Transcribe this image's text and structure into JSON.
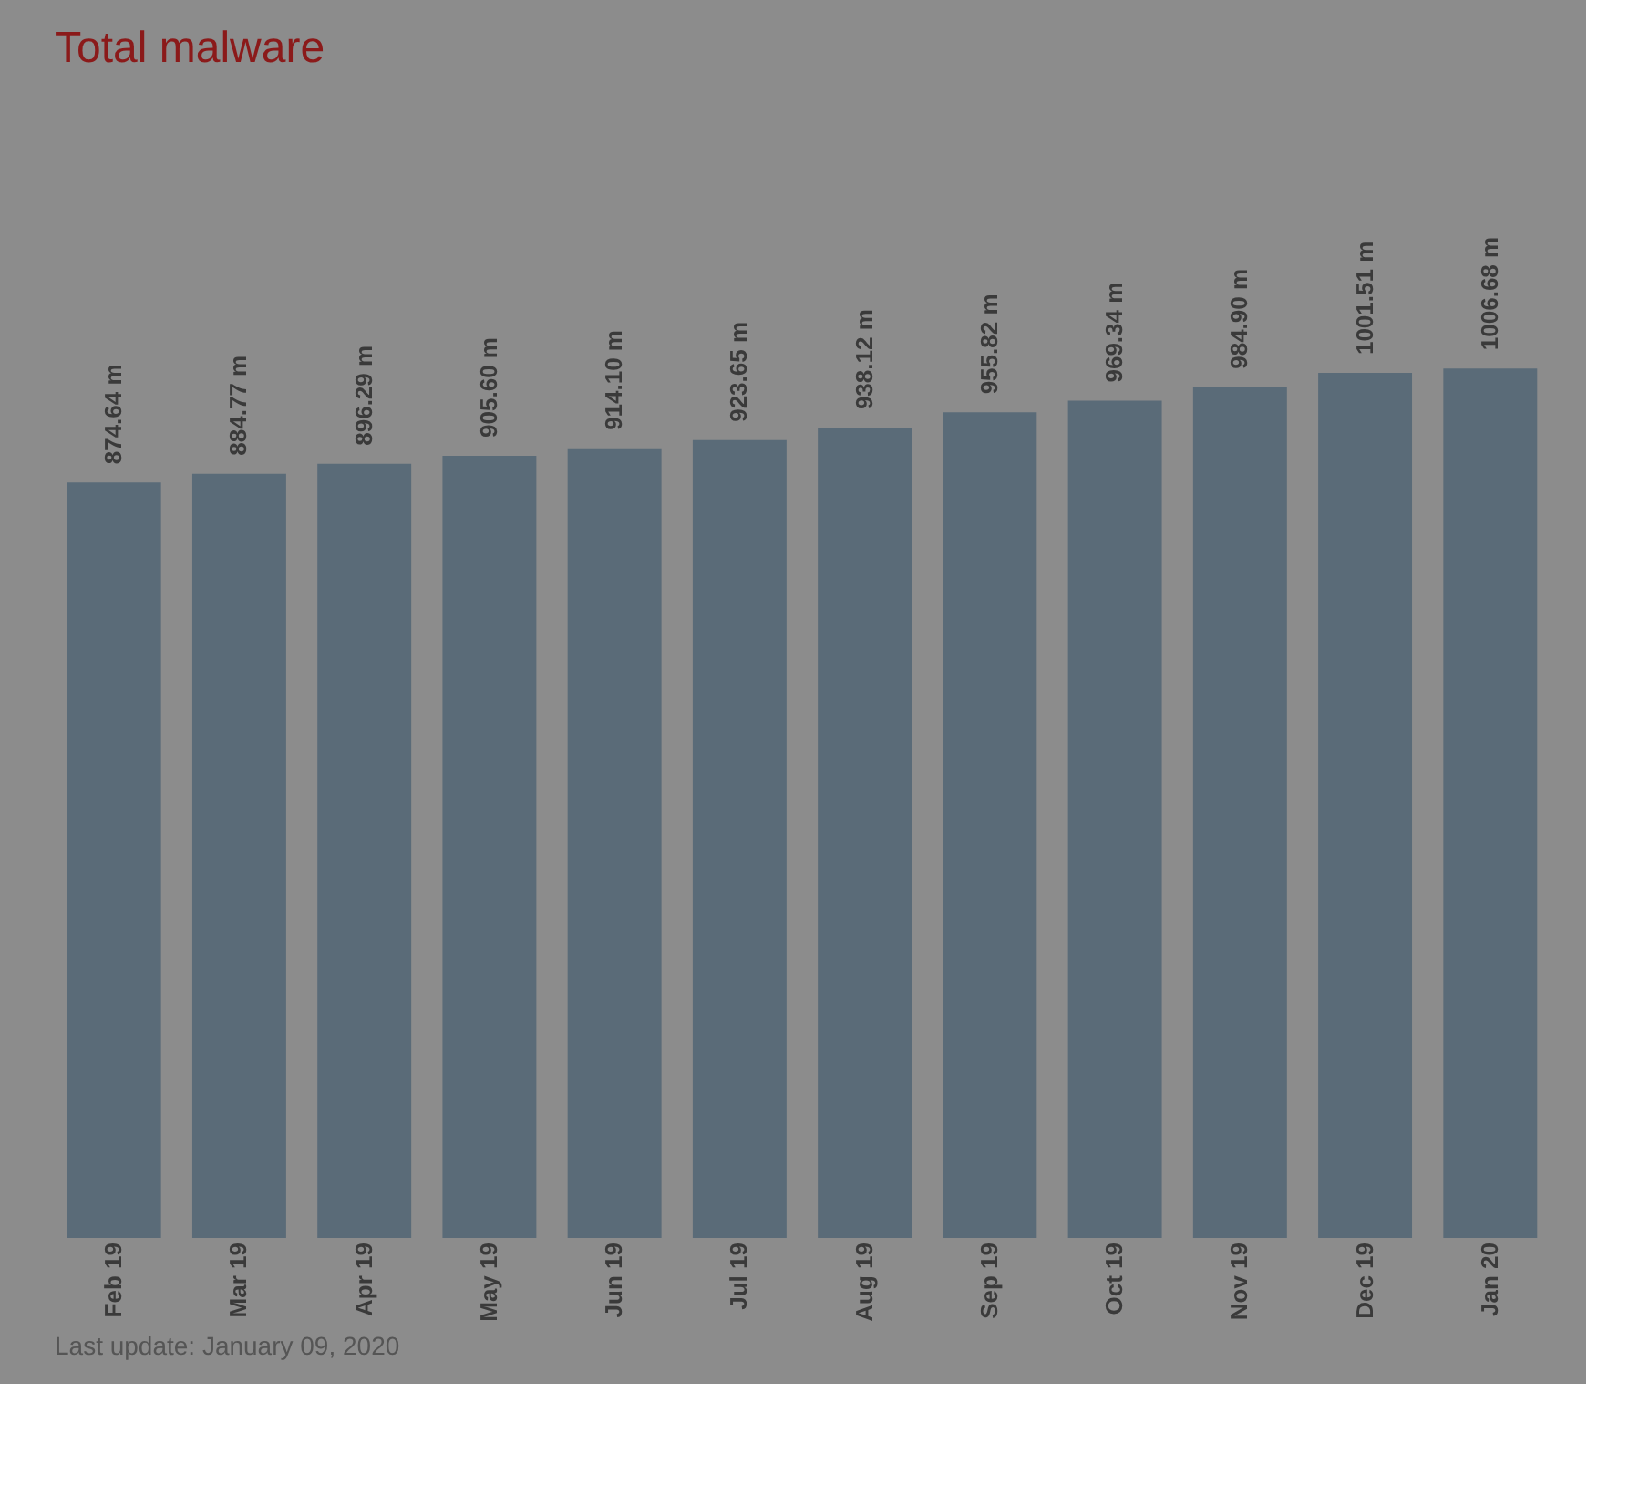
{
  "chart_data": {
    "type": "bar",
    "title": "Total malware",
    "categories": [
      "Feb 19",
      "Mar 19",
      "Apr 19",
      "May 19",
      "Jun 19",
      "Jul 19",
      "Aug 19",
      "Sep 19",
      "Oct 19",
      "Nov 19",
      "Dec 19",
      "Jan 20"
    ],
    "values": [
      874.64,
      884.77,
      896.29,
      905.6,
      914.1,
      923.65,
      938.12,
      955.82,
      969.34,
      984.9,
      1001.51,
      1006.68
    ],
    "value_labels": [
      "874.64 m",
      "884.77 m",
      "896.29 m",
      "905.60 m",
      "914.10 m",
      "923.65 m",
      "938.12 m",
      "955.82 m",
      "969.34 m",
      "984.90 m",
      "1001.51 m",
      "1006.68 m"
    ],
    "color": "#5a6b78",
    "annotations": [
      "Last update: January 09, 2020"
    ]
  }
}
